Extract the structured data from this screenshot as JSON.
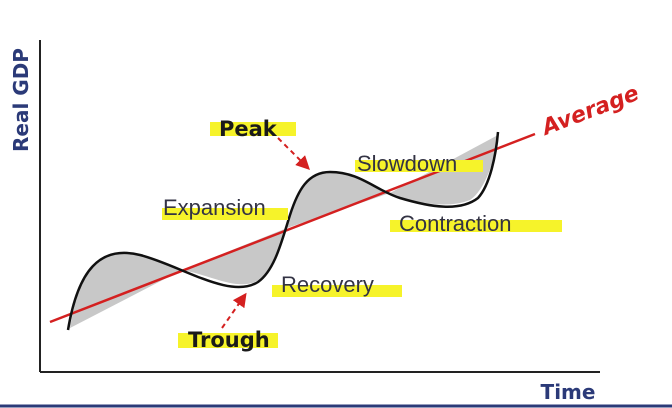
{
  "diagram": {
    "y_axis_label": "Real GDP",
    "x_axis_label": "Time",
    "trend_label": "Average",
    "phases": {
      "peak": "Peak",
      "trough": "Trough",
      "expansion": "Expansion",
      "slowdown": "Slowdown",
      "contraction": "Contraction",
      "recovery": "Recovery"
    },
    "colors": {
      "axis_label": "#2b3a78",
      "trend_line": "#d42020",
      "highlight": "#f6f32a",
      "shading": "#c8c8c8",
      "arrow": "#d42020"
    }
  }
}
